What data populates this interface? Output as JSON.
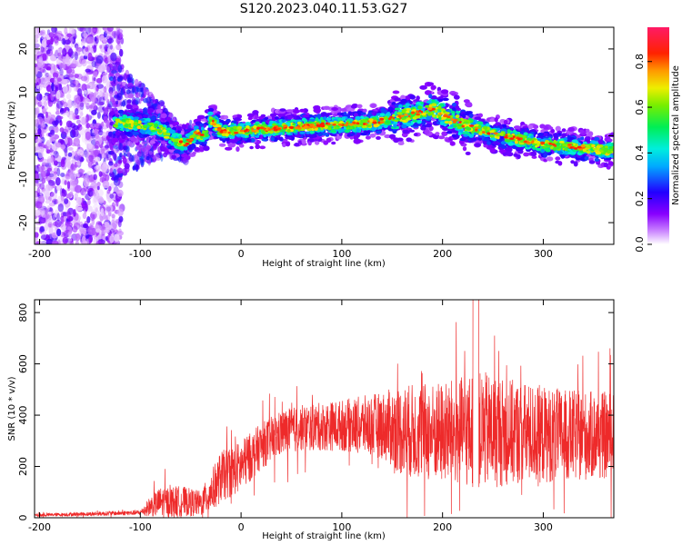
{
  "title": "S120.2023.040.11.53.G27",
  "chart_data": [
    {
      "type": "heatmap",
      "xlabel": "Height of straight line (km)",
      "ylabel": "Frequency (Hz)",
      "xlim": [
        -205,
        370
      ],
      "ylim": [
        -25,
        25
      ],
      "xticks": [
        -200,
        -100,
        0,
        100,
        200,
        300
      ],
      "yticks": [
        -20,
        -10,
        0,
        10,
        20
      ],
      "colorbar": {
        "label": "Normalized spectral amplitude",
        "ticks": [
          "0.0",
          "0.2",
          "0.4",
          "0.6",
          "0.8"
        ],
        "tick_values": [
          0.0,
          0.2,
          0.4,
          0.6,
          0.8
        ],
        "range": [
          0,
          0.95
        ],
        "colormap": "rainbow (white-purple-blue-cyan-green-yellow-red-magenta)"
      },
      "ridge_center_freq": {
        "x": [
          -120,
          -100,
          -80,
          -65,
          -55,
          -45,
          -35,
          -30,
          -20,
          0,
          20,
          50,
          80,
          100,
          130,
          150,
          170,
          190,
          200,
          220,
          250,
          280,
          300,
          330,
          370
        ],
        "y": [
          3,
          2.5,
          1.5,
          -1,
          -2,
          0.5,
          0,
          4,
          1,
          1,
          1.5,
          2,
          2.5,
          2.5,
          3,
          4,
          5,
          6,
          5,
          2.5,
          0.5,
          -1,
          -2,
          -2.5,
          -3.5
        ]
      },
      "grid": false
    },
    {
      "type": "line",
      "xlabel": "Height of straight line (km)",
      "ylabel": "SNR (10 * v/v)",
      "xlim": [
        -205,
        370
      ],
      "ylim": [
        0,
        850
      ],
      "xticks": [
        -200,
        -100,
        0,
        100,
        200,
        300
      ],
      "yticks": [
        0,
        200,
        400,
        600,
        800
      ],
      "series": [
        {
          "color": "#ee2a2a",
          "envelope_x": [
            -205,
            -150,
            -100,
            -90,
            -80,
            -60,
            -40,
            -30,
            -20,
            0,
            20,
            40,
            60,
            100,
            140,
            160,
            200,
            240,
            280,
            320,
            370
          ],
          "envelope_mean": [
            10,
            15,
            20,
            45,
            60,
            65,
            55,
            100,
            160,
            200,
            280,
            330,
            350,
            360,
            360,
            340,
            330,
            340,
            330,
            320,
            320
          ],
          "envelope_amp": [
            6,
            8,
            10,
            40,
            60,
            60,
            50,
            80,
            100,
            100,
            90,
            90,
            90,
            100,
            130,
            180,
            200,
            230,
            200,
            180,
            170
          ]
        }
      ],
      "grid": false
    }
  ]
}
